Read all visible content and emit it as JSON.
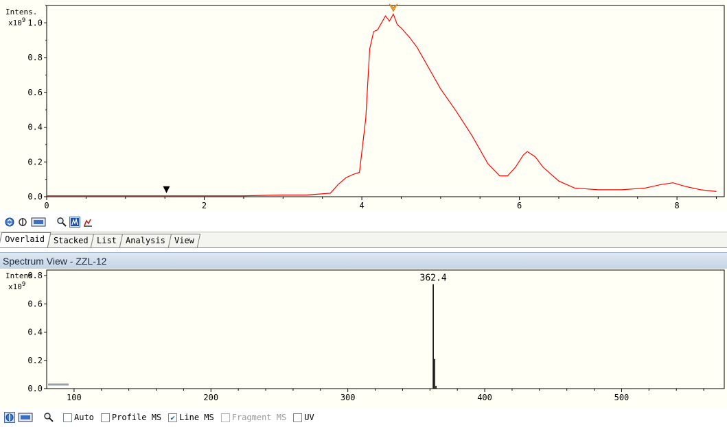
{
  "chromatogram": {
    "y_unit_line1": "Intens.",
    "y_unit_line2": "x10",
    "y_unit_exp": "9",
    "y_ticks": [
      "0.0",
      "0.2",
      "0.4",
      "0.6",
      "0.8",
      "1.0"
    ],
    "x_ticks": [
      "0",
      "2",
      "4",
      "6",
      "8"
    ],
    "line_color": "#ff0000",
    "marker_color": "#f0a030",
    "chart_data": {
      "type": "line",
      "xlim": [
        0,
        8.6
      ],
      "ylim": [
        0,
        1.1
      ],
      "series": [
        {
          "x": [
            0,
            0.5,
            1,
            1.5,
            2,
            2.5,
            3,
            3.3,
            3.6,
            3.7,
            3.8,
            3.9,
            3.97,
            4.05,
            4.1,
            4.15,
            4.2,
            4.3,
            4.35,
            4.4,
            4.45,
            4.5,
            4.6,
            4.7,
            4.8,
            4.9,
            5.0,
            5.2,
            5.4,
            5.6,
            5.75,
            5.85,
            5.95,
            6.05,
            6.1,
            6.2,
            6.3,
            6.5,
            6.7,
            7.0,
            7.3,
            7.6,
            7.8,
            7.95,
            8.1,
            8.3,
            8.5
          ],
          "values": [
            0.005,
            0.005,
            0.005,
            0.005,
            0.005,
            0.005,
            0.01,
            0.01,
            0.02,
            0.07,
            0.11,
            0.13,
            0.14,
            0.45,
            0.85,
            0.95,
            0.96,
            1.04,
            1.01,
            1.05,
            0.99,
            0.97,
            0.92,
            0.86,
            0.78,
            0.7,
            0.62,
            0.49,
            0.35,
            0.19,
            0.12,
            0.12,
            0.17,
            0.24,
            0.26,
            0.23,
            0.17,
            0.09,
            0.05,
            0.04,
            0.04,
            0.05,
            0.07,
            0.08,
            0.06,
            0.04,
            0.03
          ]
        }
      ],
      "markers": [
        {
          "type": "down-triangle-black",
          "x": 1.52
        },
        {
          "type": "down-chevron-orange",
          "x": 4.4
        }
      ]
    }
  },
  "toolbar1": {
    "icons": [
      "trace-options-icon",
      "overlay-toggle-icon",
      "display-mode-icon",
      "zoom-icon",
      "spectrum-select-icon",
      "peak-mark-icon"
    ]
  },
  "tabs": [
    {
      "label": "Overlaid",
      "active": true
    },
    {
      "label": "Stacked",
      "active": false
    },
    {
      "label": "List",
      "active": false
    },
    {
      "label": "Analysis",
      "active": false
    },
    {
      "label": "View",
      "active": false
    }
  ],
  "spectrum_view": {
    "title": "Spectrum View - ZZL-12",
    "y_unit_line1": "Intens.",
    "y_unit_line2": "x10",
    "y_unit_exp": "9",
    "y_ticks": [
      "0.0",
      "0.2",
      "0.4",
      "0.6",
      "0.8"
    ],
    "x_ticks": [
      "100",
      "200",
      "300",
      "400",
      "500"
    ],
    "peak_label": "362.4",
    "chart_data": {
      "type": "bar",
      "xlim": [
        80,
        575
      ],
      "ylim": [
        0,
        0.84
      ],
      "x": [
        362.4,
        363.4,
        364.4
      ],
      "values": [
        0.74,
        0.21,
        0.02
      ]
    }
  },
  "toolbar2": {
    "checkboxes": [
      {
        "label": "Auto",
        "checked": false,
        "enabled": true
      },
      {
        "label": "Profile MS",
        "checked": false,
        "enabled": true
      },
      {
        "label": "Line MS",
        "checked": true,
        "enabled": true
      },
      {
        "label": "Fragment MS",
        "checked": false,
        "enabled": false
      },
      {
        "label": "UV",
        "checked": false,
        "enabled": true
      }
    ]
  }
}
